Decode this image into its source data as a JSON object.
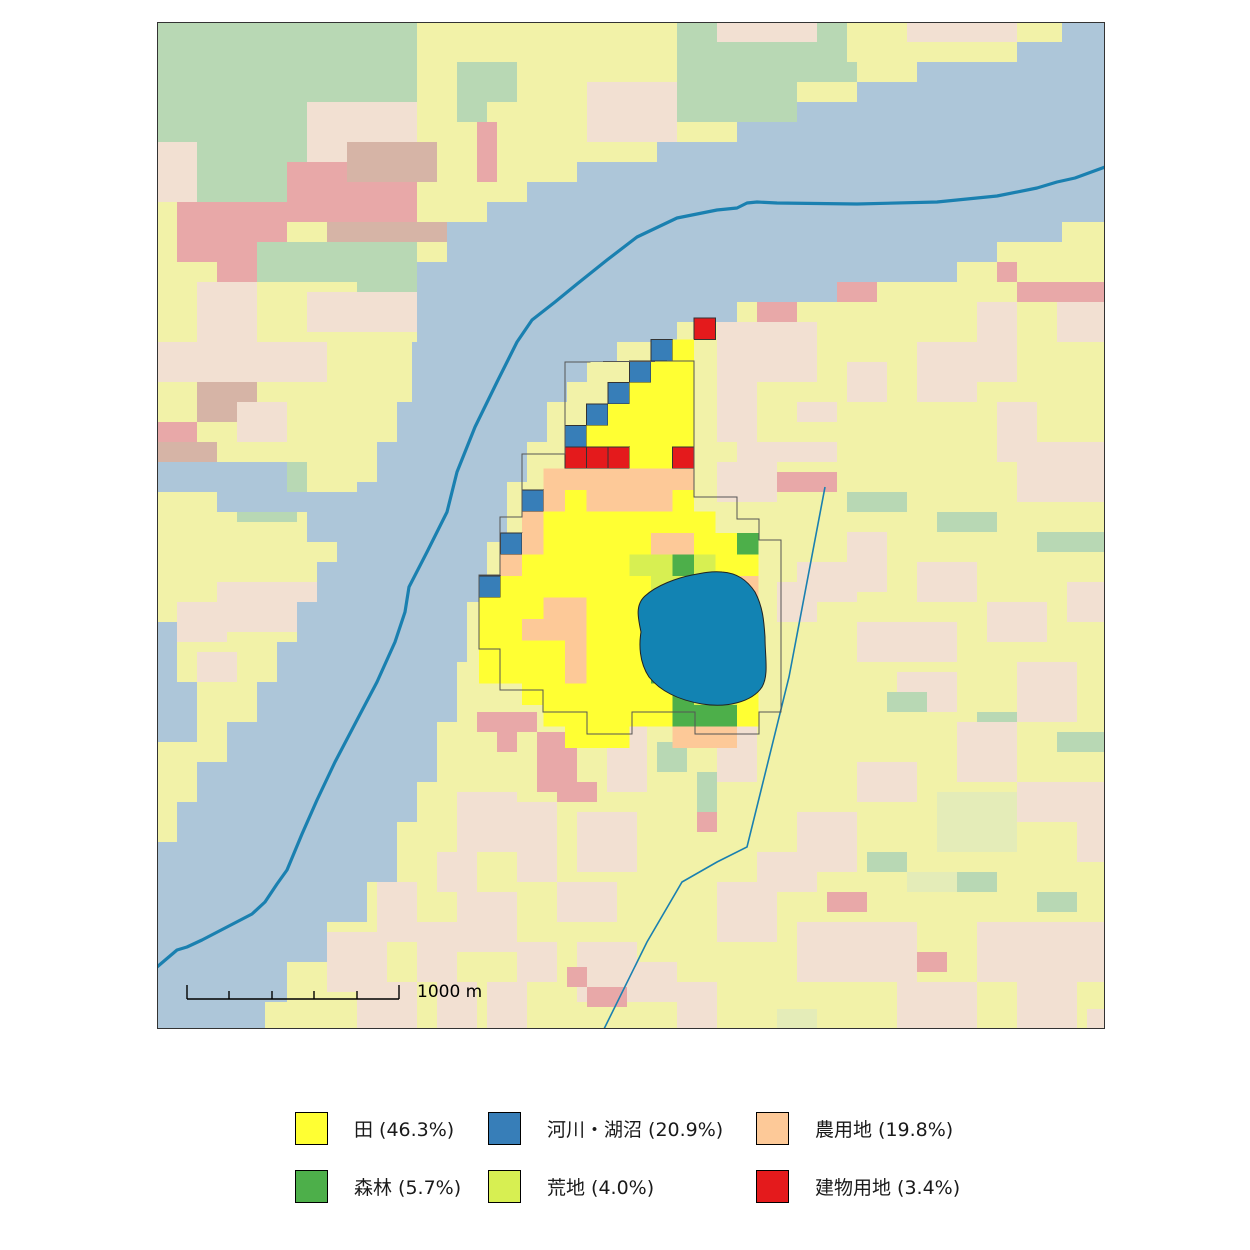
{
  "map": {
    "scalebar": {
      "label": "1000 m"
    },
    "colors": {
      "paddy_bg": "#f2f2a8",
      "farmland_bg": "#f2e0d2",
      "forest_bg": "#b8d8b4",
      "building_bg": "#e8a8a8",
      "river_bg": "#adc6d9",
      "wasteland_bg": "#e4ecb8",
      "other_bg": "#d6b4a6",
      "river_line": "#1a80b0",
      "lake_fill": "#1283b3"
    }
  },
  "legend": {
    "items": [
      {
        "label": "田 (46.3%)",
        "color": "#ffff33"
      },
      {
        "label": "河川・湖沼 (20.9%)",
        "color": "#377eb8"
      },
      {
        "label": "農用地 (19.8%)",
        "color": "#fdc998"
      },
      {
        "label": "森林 (5.7%)",
        "color": "#4daf4a"
      },
      {
        "label": "荒地 (4.0%)",
        "color": "#d7ef52"
      },
      {
        "label": "建物用地 (3.4%)",
        "color": "#e41a1c"
      }
    ]
  }
}
